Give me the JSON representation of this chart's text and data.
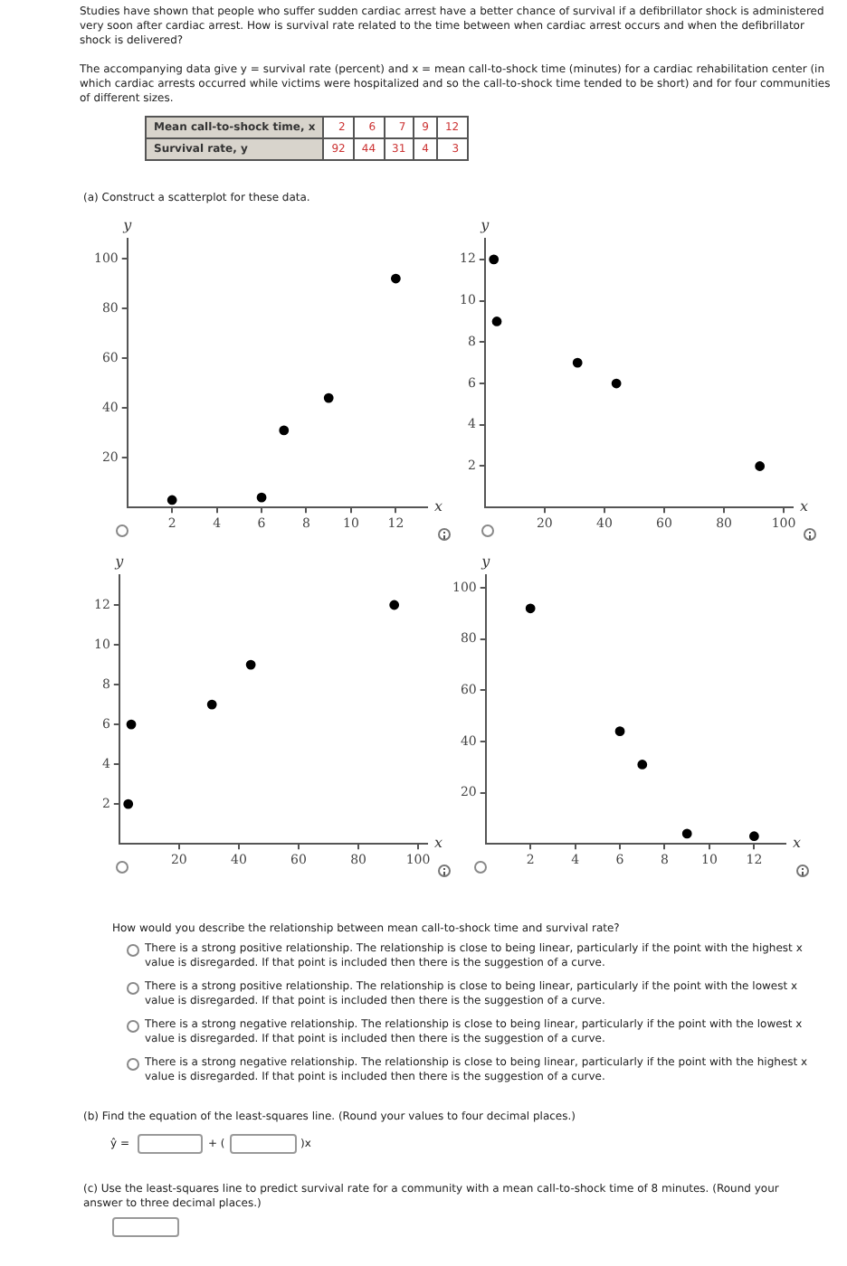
{
  "chart_data": [
    {
      "type": "scatter",
      "xlabel": "x",
      "ylabel": "y",
      "x": [
        2,
        6,
        7,
        9,
        12
      ],
      "values": [
        3,
        4,
        31,
        44,
        92
      ],
      "color": "#000000",
      "marker": "circle",
      "xlim": [
        0,
        13.4
      ],
      "xticks": [
        2,
        4,
        6,
        8,
        10,
        12
      ],
      "ylim": [
        0,
        108
      ],
      "yticks": [
        20,
        40,
        60,
        80,
        100
      ],
      "grid": false,
      "annotations": [
        "Studies have shown that people who suffer sudden cardiac arrest have a better chance of survival if a defibrillator shock is administered very soon after cardiac arrest. How is survival rate related to the time between when cardiac arrest occurs and when the defibrillator shock is delivered?",
        "The accompanying data give y = survival rate (percent) and x = mean call-to-shock time (minutes) for a cardiac rehabilitation center (in which cardiac arrests occurred while victims were hospitalized and so the call-to-shock time tended to be short) and for four communities of different sizes.",
        "Mean call-to-shock time, x",
        "2",
        "6",
        "7",
        "9",
        "12",
        "Survival rate, y",
        "92",
        "44",
        "31",
        "4",
        "3",
        "(a) Construct a scatterplot for these data."
      ]
    },
    {
      "type": "scatter",
      "xlabel": "x",
      "ylabel": "y",
      "x": [
        3,
        4,
        31,
        44,
        92
      ],
      "values": [
        12,
        9,
        7,
        6,
        2
      ],
      "color": "#000000",
      "marker": "circle",
      "xlim": [
        0,
        103
      ],
      "xticks": [
        20,
        40,
        60,
        80,
        100
      ],
      "ylim": [
        0,
        13
      ],
      "yticks": [
        2,
        4,
        6,
        8,
        10,
        12
      ],
      "grid": false
    },
    {
      "type": "scatter",
      "xlabel": "x",
      "ylabel": "y",
      "x": [
        3,
        4,
        31,
        44,
        92
      ],
      "values": [
        2,
        6,
        7,
        9,
        12
      ],
      "color": "#000000",
      "marker": "circle",
      "xlim": [
        0,
        103
      ],
      "xticks": [
        20,
        40,
        60,
        80,
        100
      ],
      "ylim": [
        0,
        13.5
      ],
      "yticks": [
        2,
        4,
        6,
        8,
        10,
        12
      ],
      "grid": false
    },
    {
      "type": "scatter",
      "xlabel": "x",
      "ylabel": "y",
      "x": [
        2,
        6,
        7,
        9,
        12
      ],
      "values": [
        92,
        44,
        31,
        4,
        3
      ],
      "color": "#000000",
      "marker": "circle",
      "xlim": [
        0,
        13.4
      ],
      "xticks": [
        2,
        4,
        6,
        8,
        10,
        12
      ],
      "ylim": [
        0,
        105
      ],
      "yticks": [
        20,
        40,
        60,
        80,
        100
      ],
      "grid": false,
      "annotations": [
        "How would you describe the relationship between mean call-to-shock time and survival rate?",
        "There is a strong positive relationship. The relationship is close to being linear, particularly if the point with the highest x value is disregarded. If that point is included then there is the suggestion of a curve.",
        "There is a strong positive relationship. The relationship is close to being linear, particularly if the point with the lowest x value is disregarded. If that point is included then there is the suggestion of a curve.",
        "There is a strong negative relationship. The relationship is close to being linear, particularly if the point with the lowest x value is disregarded. If that point is included then there is the suggestion of a curve.",
        "There is a strong negative relationship. The relationship is close to being linear, particularly if the point with the highest x value is disregarded. If that point is included then there is the suggestion of a curve.",
        "(b) Find the equation of the least-squares line. (Round your values to four decimal places.)",
        "ŷ =",
        "+ (",
        ")x",
        "(c) Use the least-squares line to predict survival rate for a community with a mean call-to-shock time of 8 minutes. (Round your answer to three decimal places.)"
      ]
    }
  ]
}
